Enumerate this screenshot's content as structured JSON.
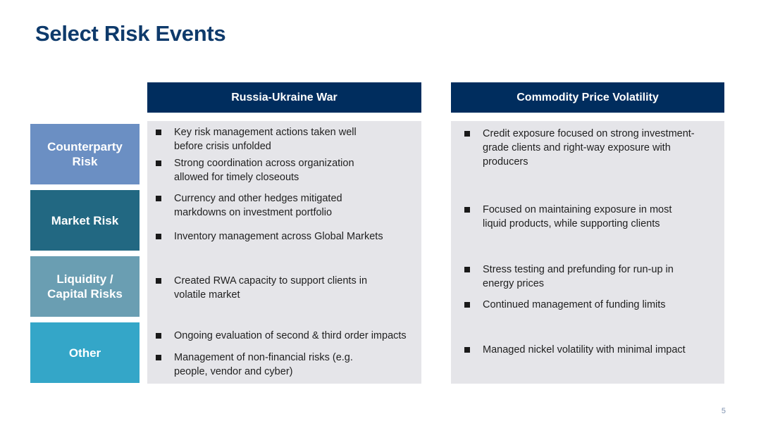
{
  "title": "Select Risk Events",
  "columns": [
    {
      "header": "Russia-Ukraine War"
    },
    {
      "header": "Commodity Price Volatility"
    }
  ],
  "rows": [
    {
      "label": "Counterparty\nRisk",
      "color": "#6b8fc3"
    },
    {
      "label": "Market Risk",
      "color": "#226882"
    },
    {
      "label": "Liquidity /\nCapital Risks",
      "color": "#6a9eb2"
    },
    {
      "label": "Other",
      "color": "#34a6c8"
    }
  ],
  "russia": [
    "Key risk management actions taken well before crisis unfolded",
    "Strong coordination across organization allowed for timely closeouts",
    "Currency and other hedges mitigated markdowns on investment portfolio",
    "Inventory management across Global Markets",
    "Created RWA capacity to support clients in volatile market",
    "Ongoing evaluation of second & third order impacts",
    "Management of non-financial risks (e.g. people, vendor and cyber)"
  ],
  "commodity": [
    "Credit exposure focused on strong investment-grade clients and right-way exposure with producers",
    "Focused on maintaining exposure in most liquid products, while supporting clients",
    "Stress testing and prefunding for run-up in energy prices",
    "Continued management of funding limits",
    "Managed nickel volatility with minimal impact"
  ],
  "page_number": "5",
  "colors": {
    "title": "#0e3a6b",
    "header_bg": "#002d5e",
    "panel_bg": "#e5e5e9"
  },
  "icons": {
    "bullet": "square-bullet-icon"
  }
}
